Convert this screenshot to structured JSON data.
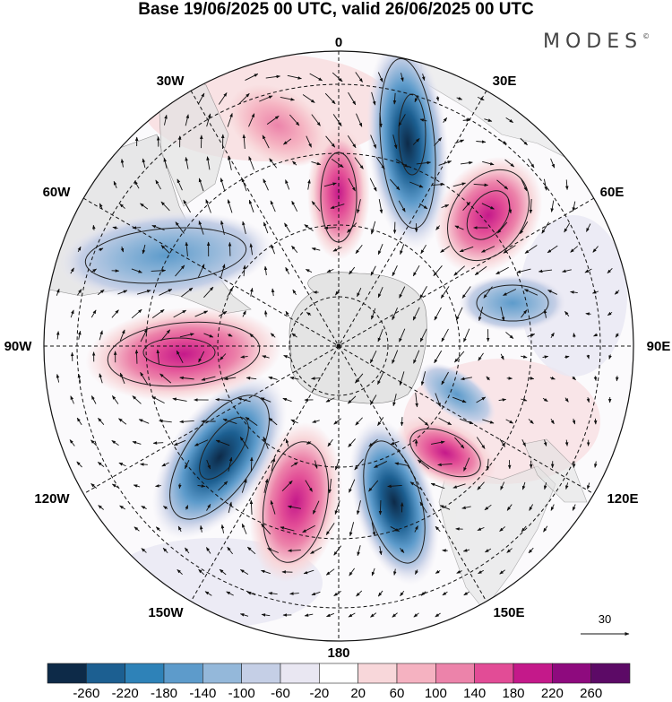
{
  "title": "Base 19/06/2025 00 UTC, valid 26/06/2025 00 UTC",
  "brand": "MODES",
  "brand_mark": "©",
  "lon_labels": [
    "0",
    "30E",
    "60E",
    "90E",
    "120E",
    "150E",
    "180",
    "150W",
    "120W",
    "90W",
    "60W",
    "30W"
  ],
  "vector_reference": {
    "value": "30"
  },
  "colorbar": {
    "ticks": [
      "-260",
      "-220",
      "-180",
      "-140",
      "-100",
      "-60",
      "-20",
      "20",
      "60",
      "100",
      "140",
      "180",
      "220",
      "260"
    ],
    "colors": [
      "#0d2a48",
      "#1c5f91",
      "#2e82b8",
      "#5d9bcb",
      "#94b8da",
      "#c5cfe6",
      "#e9e7f2",
      "#ffffff",
      "#f8d7da",
      "#f5b2c1",
      "#ec83aa",
      "#e24c96",
      "#c4198a",
      "#8e0a7e",
      "#5c0a66"
    ]
  },
  "colors": {
    "land": "#e7e7e7",
    "neg_strong": "#2a6fa6",
    "pos_strong": "#d02a8c"
  }
}
